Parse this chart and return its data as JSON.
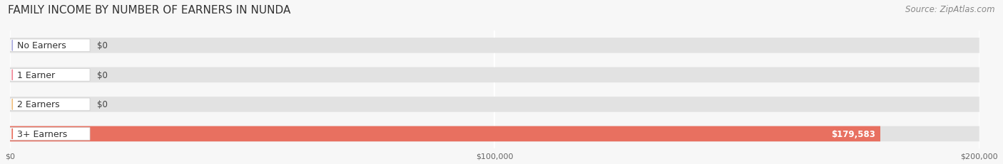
{
  "title": "FAMILY INCOME BY NUMBER OF EARNERS IN NUNDA",
  "source": "Source: ZipAtlas.com",
  "categories": [
    "No Earners",
    "1 Earner",
    "2 Earners",
    "3+ Earners"
  ],
  "values": [
    0,
    0,
    0,
    179583
  ],
  "bar_colors": [
    "#aaaadd",
    "#f08898",
    "#f0c080",
    "#e87060"
  ],
  "value_labels": [
    "$0",
    "$0",
    "$0",
    "$179,583"
  ],
  "xlim": [
    0,
    200000
  ],
  "xticks": [
    0,
    100000,
    200000
  ],
  "xticklabels": [
    "$0",
    "$100,000",
    "$200,000"
  ],
  "background_color": "#f7f7f7",
  "bar_bg_color": "#e2e2e2",
  "title_fontsize": 11,
  "source_fontsize": 8.5,
  "bar_height": 0.52,
  "label_fontsize": 9,
  "value_fontsize": 8.5
}
